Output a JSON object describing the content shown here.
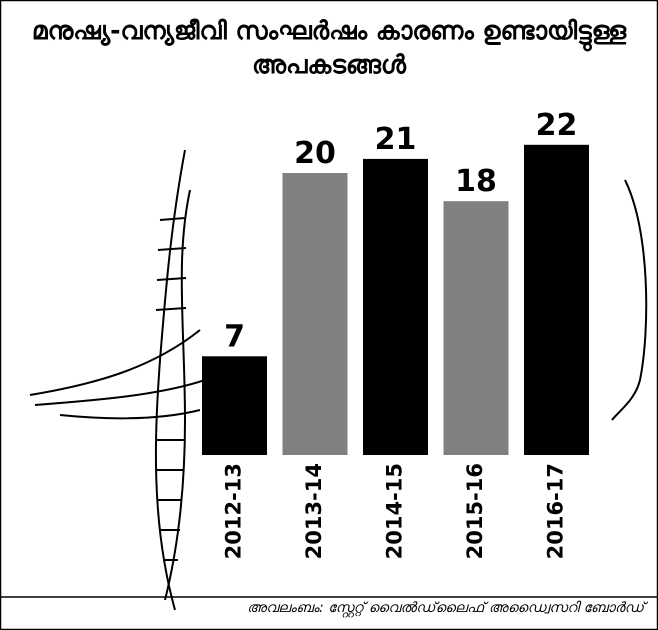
{
  "chart_data": {
    "type": "bar",
    "title": "മനുഷ്യ-വന്യജീവി സംഘർഷം കാരണം ഉണ്ടായിട്ടുള്ള അപകടങ്ങൾ",
    "source": "അവലംബം: സ്റ്റേറ്റ് വൈൽഡ്‌ലൈഫ് അഡ്വൈസറി ബോർഡ്",
    "categories": [
      "2012-13",
      "2013-14",
      "2014-15",
      "2015-16",
      "2016-17"
    ],
    "values": [
      7,
      20,
      21,
      18,
      22
    ],
    "colors": [
      "#000000",
      "#808080",
      "#000000",
      "#808080",
      "#000000"
    ]
  }
}
